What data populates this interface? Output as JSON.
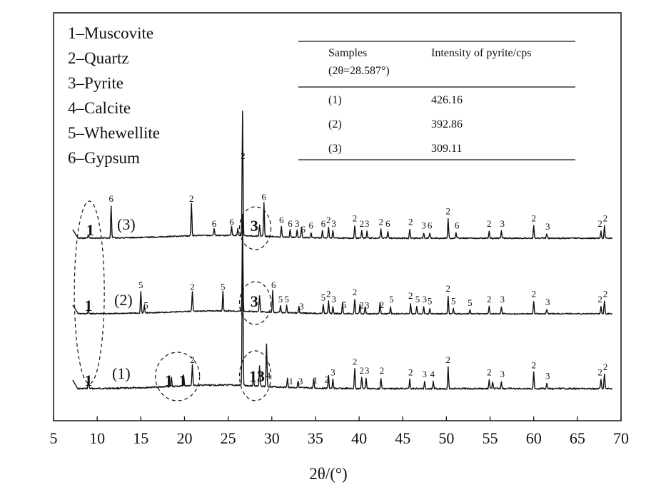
{
  "chart_data": {
    "type": "line",
    "xlabel": "2θ/(°)",
    "xlim": [
      5,
      70
    ],
    "xticks": [
      5,
      10,
      15,
      20,
      25,
      30,
      35,
      40,
      45,
      50,
      55,
      60,
      65,
      70
    ],
    "grid": false,
    "legend_position": "top-left",
    "legend": [
      "1–Muscovite",
      "2–Quartz",
      "3–Pyrite",
      "4–Calcite",
      "5–Whewellite",
      "6–Gypsum"
    ],
    "series": [
      {
        "name": "(1)",
        "peaks": [
          [
            9.0,
            0.3
          ],
          [
            18.5,
            0.25
          ],
          [
            19.9,
            0.3
          ],
          [
            20.9,
            0.6
          ],
          [
            26.65,
            4.8
          ],
          [
            27.9,
            0.25
          ],
          [
            28.6,
            0.55
          ],
          [
            29.4,
            1.2
          ],
          [
            31.8,
            0.25
          ],
          [
            33.0,
            0.2
          ],
          [
            34.8,
            0.25
          ],
          [
            36.5,
            0.35
          ],
          [
            37.0,
            0.25
          ],
          [
            39.5,
            0.55
          ],
          [
            40.3,
            0.3
          ],
          [
            40.8,
            0.3
          ],
          [
            42.5,
            0.3
          ],
          [
            45.8,
            0.25
          ],
          [
            47.5,
            0.2
          ],
          [
            48.5,
            0.2
          ],
          [
            50.2,
            0.6
          ],
          [
            54.9,
            0.25
          ],
          [
            55.3,
            0.2
          ],
          [
            56.3,
            0.2
          ],
          [
            60.0,
            0.45
          ],
          [
            61.5,
            0.15
          ],
          [
            67.7,
            0.25
          ],
          [
            68.1,
            0.4
          ]
        ]
      },
      {
        "name": "(2)",
        "peaks": [
          [
            9.0,
            0.1
          ],
          [
            15.0,
            0.6
          ],
          [
            15.4,
            0.2
          ],
          [
            20.9,
            0.55
          ],
          [
            24.4,
            0.55
          ],
          [
            26.65,
            2.4
          ],
          [
            28.6,
            0.45
          ],
          [
            30.1,
            0.6
          ],
          [
            31.0,
            0.2
          ],
          [
            31.7,
            0.2
          ],
          [
            33.1,
            0.2
          ],
          [
            35.9,
            0.25
          ],
          [
            36.5,
            0.35
          ],
          [
            37.0,
            0.2
          ],
          [
            38.1,
            0.3
          ],
          [
            39.5,
            0.4
          ],
          [
            40.1,
            0.25
          ],
          [
            40.7,
            0.2
          ],
          [
            42.4,
            0.3
          ],
          [
            43.6,
            0.2
          ],
          [
            45.9,
            0.3
          ],
          [
            46.6,
            0.2
          ],
          [
            47.4,
            0.2
          ],
          [
            48.1,
            0.15
          ],
          [
            50.2,
            0.5
          ],
          [
            50.8,
            0.15
          ],
          [
            52.7,
            0.1
          ],
          [
            54.9,
            0.2
          ],
          [
            56.3,
            0.2
          ],
          [
            60.0,
            0.35
          ],
          [
            61.5,
            0.12
          ],
          [
            67.7,
            0.2
          ],
          [
            68.1,
            0.35
          ]
        ]
      },
      {
        "name": "(3)",
        "peaks": [
          [
            9.0,
            0.1
          ],
          [
            11.6,
            0.9
          ],
          [
            20.8,
            0.9
          ],
          [
            23.4,
            0.2
          ],
          [
            25.4,
            0.25
          ],
          [
            26.1,
            0.2
          ],
          [
            26.65,
            3.5
          ],
          [
            28.6,
            0.3
          ],
          [
            29.1,
            0.95
          ],
          [
            31.1,
            0.3
          ],
          [
            32.1,
            0.2
          ],
          [
            32.9,
            0.2
          ],
          [
            33.4,
            0.3
          ],
          [
            34.5,
            0.15
          ],
          [
            35.8,
            0.2
          ],
          [
            36.5,
            0.3
          ],
          [
            37.0,
            0.2
          ],
          [
            39.5,
            0.35
          ],
          [
            40.3,
            0.2
          ],
          [
            40.9,
            0.2
          ],
          [
            42.5,
            0.25
          ],
          [
            43.3,
            0.2
          ],
          [
            45.8,
            0.25
          ],
          [
            47.4,
            0.15
          ],
          [
            48.1,
            0.15
          ],
          [
            50.2,
            0.55
          ],
          [
            51.1,
            0.15
          ],
          [
            54.9,
            0.2
          ],
          [
            56.3,
            0.2
          ],
          [
            60.0,
            0.35
          ],
          [
            61.5,
            0.12
          ],
          [
            67.7,
            0.2
          ],
          [
            68.1,
            0.35
          ]
        ]
      }
    ],
    "peak_labels": {
      "s1": [
        [
          9.0,
          "1"
        ],
        [
          18.2,
          "1"
        ],
        [
          19.8,
          "1"
        ],
        [
          20.9,
          "2"
        ],
        [
          28.3,
          "13"
        ],
        [
          29.6,
          "4"
        ],
        [
          32.2,
          "1"
        ],
        [
          33.3,
          "3"
        ],
        [
          35.0,
          "1"
        ],
        [
          36.3,
          "2"
        ],
        [
          37.0,
          "3"
        ],
        [
          39.5,
          "2"
        ],
        [
          40.3,
          "2"
        ],
        [
          40.9,
          "3"
        ],
        [
          42.6,
          "2"
        ],
        [
          45.9,
          "2"
        ],
        [
          47.5,
          "3"
        ],
        [
          48.4,
          "4"
        ],
        [
          50.2,
          "2"
        ],
        [
          54.9,
          "2"
        ],
        [
          56.4,
          "3"
        ],
        [
          60.0,
          "2"
        ],
        [
          61.6,
          "3"
        ],
        [
          67.6,
          "2"
        ],
        [
          68.2,
          "2"
        ]
      ],
      "s2": [
        [
          9.0,
          "1"
        ],
        [
          15.0,
          "5"
        ],
        [
          15.6,
          "5"
        ],
        [
          20.9,
          "2"
        ],
        [
          24.4,
          "5"
        ],
        [
          28.0,
          "3"
        ],
        [
          30.2,
          "6"
        ],
        [
          31.0,
          "5"
        ],
        [
          31.7,
          "5"
        ],
        [
          33.4,
          "3"
        ],
        [
          35.9,
          "5"
        ],
        [
          36.5,
          "2"
        ],
        [
          37.1,
          "3"
        ],
        [
          38.3,
          "5"
        ],
        [
          39.5,
          "2"
        ],
        [
          40.3,
          "2"
        ],
        [
          40.9,
          "3"
        ],
        [
          42.6,
          "2"
        ],
        [
          43.7,
          "5"
        ],
        [
          45.9,
          "2"
        ],
        [
          46.7,
          "5"
        ],
        [
          47.5,
          "3"
        ],
        [
          48.1,
          "5"
        ],
        [
          50.2,
          "2"
        ],
        [
          50.8,
          "5"
        ],
        [
          52.7,
          "5"
        ],
        [
          54.9,
          "2"
        ],
        [
          56.4,
          "3"
        ],
        [
          60.0,
          "2"
        ],
        [
          61.6,
          "3"
        ],
        [
          67.6,
          "2"
        ],
        [
          68.2,
          "2"
        ]
      ],
      "s3": [
        [
          9.2,
          "1"
        ],
        [
          11.6,
          "6"
        ],
        [
          20.8,
          "2"
        ],
        [
          23.4,
          "6"
        ],
        [
          25.4,
          "6"
        ],
        [
          26.7,
          "2"
        ],
        [
          28.0,
          "3"
        ],
        [
          29.1,
          "6"
        ],
        [
          31.1,
          "6"
        ],
        [
          32.1,
          "6"
        ],
        [
          32.9,
          "3"
        ],
        [
          33.6,
          "6"
        ],
        [
          34.5,
          "6"
        ],
        [
          35.9,
          "6"
        ],
        [
          36.5,
          "2"
        ],
        [
          37.1,
          "3"
        ],
        [
          39.5,
          "2"
        ],
        [
          40.3,
          "2"
        ],
        [
          40.9,
          "3"
        ],
        [
          42.5,
          "2"
        ],
        [
          43.3,
          "6"
        ],
        [
          45.9,
          "2"
        ],
        [
          47.4,
          "3"
        ],
        [
          48.1,
          "6"
        ],
        [
          50.2,
          "2"
        ],
        [
          51.2,
          "6"
        ],
        [
          54.9,
          "2"
        ],
        [
          56.4,
          "3"
        ],
        [
          60.0,
          "2"
        ],
        [
          61.6,
          "3"
        ],
        [
          67.6,
          "2"
        ],
        [
          68.2,
          "2"
        ]
      ]
    },
    "sample_labels": [
      "(3)",
      "(2)",
      "(1)"
    ],
    "table": {
      "headers": [
        "Samples",
        "Intensity of pyrite/cps"
      ],
      "subheader": "(2θ=28.587°)",
      "rows": [
        [
          "(1)",
          "426.16"
        ],
        [
          "(2)",
          "392.86"
        ],
        [
          "(3)",
          "309.11"
        ]
      ]
    }
  }
}
